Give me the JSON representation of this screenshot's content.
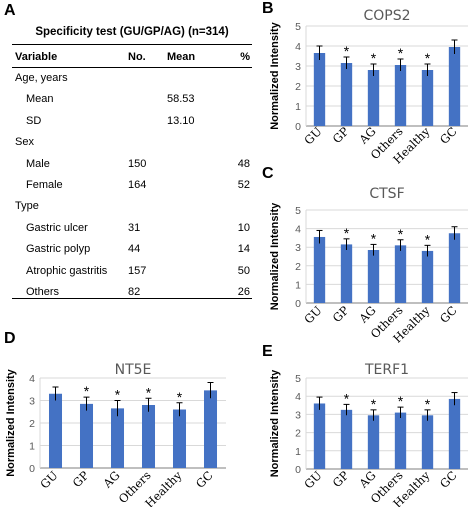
{
  "panel_letters": {
    "a": "A",
    "b": "B",
    "c": "C",
    "d": "D",
    "e": "E"
  },
  "table": {
    "title": "Specificity test (GU/GP/AG) (n=314)",
    "headers": {
      "variable": "Variable",
      "no": "No.",
      "mean": "Mean",
      "pct": "%"
    },
    "rows": [
      {
        "variable": "Age, years",
        "no": "",
        "mean": "",
        "pct": "",
        "indent": false
      },
      {
        "variable": "Mean",
        "no": "",
        "mean": "58.53",
        "pct": "",
        "indent": true
      },
      {
        "variable": "SD",
        "no": "",
        "mean": "13.10",
        "pct": "",
        "indent": true
      },
      {
        "variable": "Sex",
        "no": "",
        "mean": "",
        "pct": "",
        "indent": false
      },
      {
        "variable": "Male",
        "no": "150",
        "mean": "",
        "pct": "48",
        "indent": true
      },
      {
        "variable": "Female",
        "no": "164",
        "mean": "",
        "pct": "52",
        "indent": true
      },
      {
        "variable": "Type",
        "no": "",
        "mean": "",
        "pct": "",
        "indent": false
      },
      {
        "variable": "Gastric ulcer",
        "no": "31",
        "mean": "",
        "pct": "10",
        "indent": true
      },
      {
        "variable": "Gastric polyp",
        "no": "44",
        "mean": "",
        "pct": "14",
        "indent": true
      },
      {
        "variable": "Atrophic gastritis",
        "no": "157",
        "mean": "",
        "pct": "50",
        "indent": true
      },
      {
        "variable": "Others",
        "no": "82",
        "mean": "",
        "pct": "26",
        "indent": true
      }
    ]
  },
  "chart_data": [
    {
      "panel": "B",
      "type": "bar",
      "title": "COPS2",
      "ylabel": "Normalized Intensity",
      "categories": [
        "GU",
        "GP",
        "AG",
        "Others",
        "Healthy",
        "GC"
      ],
      "values": [
        3.65,
        3.15,
        2.8,
        3.05,
        2.8,
        3.95
      ],
      "errors": [
        0.35,
        0.3,
        0.3,
        0.3,
        0.3,
        0.35
      ],
      "significance": [
        "",
        "*",
        "*",
        "*",
        "*",
        ""
      ],
      "ylim": [
        0,
        5
      ],
      "yticks": [
        "0",
        "1",
        "2",
        "3",
        "4",
        "5"
      ],
      "bar_color": "#4472c4"
    },
    {
      "panel": "C",
      "type": "bar",
      "title": "CTSF",
      "ylabel": "Normalized Intensity",
      "categories": [
        "GU",
        "GP",
        "AG",
        "Others",
        "Healthy",
        "GC"
      ],
      "values": [
        3.55,
        3.15,
        2.85,
        3.1,
        2.8,
        3.75
      ],
      "errors": [
        0.35,
        0.3,
        0.3,
        0.3,
        0.3,
        0.35
      ],
      "significance": [
        "",
        "*",
        "*",
        "*",
        "*",
        ""
      ],
      "ylim": [
        0,
        5
      ],
      "yticks": [
        "0",
        "1",
        "2",
        "3",
        "4",
        "5"
      ],
      "bar_color": "#4472c4"
    },
    {
      "panel": "D",
      "type": "bar",
      "title": "NT5E",
      "ylabel": "Normalized Intensity",
      "categories": [
        "GU",
        "GP",
        "AG",
        "Others",
        "Healthy",
        "GC"
      ],
      "values": [
        3.3,
        2.85,
        2.65,
        2.8,
        2.6,
        3.45
      ],
      "errors": [
        0.3,
        0.3,
        0.35,
        0.3,
        0.3,
        0.35
      ],
      "significance": [
        "",
        "*",
        "*",
        "*",
        "*",
        ""
      ],
      "ylim": [
        0,
        4
      ],
      "yticks": [
        "0",
        "1",
        "2",
        "3",
        "4"
      ],
      "bar_color": "#4472c4"
    },
    {
      "panel": "E",
      "type": "bar",
      "title": "TERF1",
      "ylabel": "Normalized Intensity",
      "categories": [
        "GU",
        "GP",
        "AG",
        "Others",
        "Healthy",
        "GC"
      ],
      "values": [
        3.6,
        3.25,
        2.95,
        3.1,
        2.95,
        3.85
      ],
      "errors": [
        0.35,
        0.3,
        0.3,
        0.3,
        0.3,
        0.35
      ],
      "significance": [
        "",
        "*",
        "*",
        "*",
        "*",
        ""
      ],
      "ylim": [
        0,
        5
      ],
      "yticks": [
        "0",
        "1",
        "2",
        "3",
        "4",
        "5"
      ],
      "bar_color": "#4472c4"
    }
  ]
}
